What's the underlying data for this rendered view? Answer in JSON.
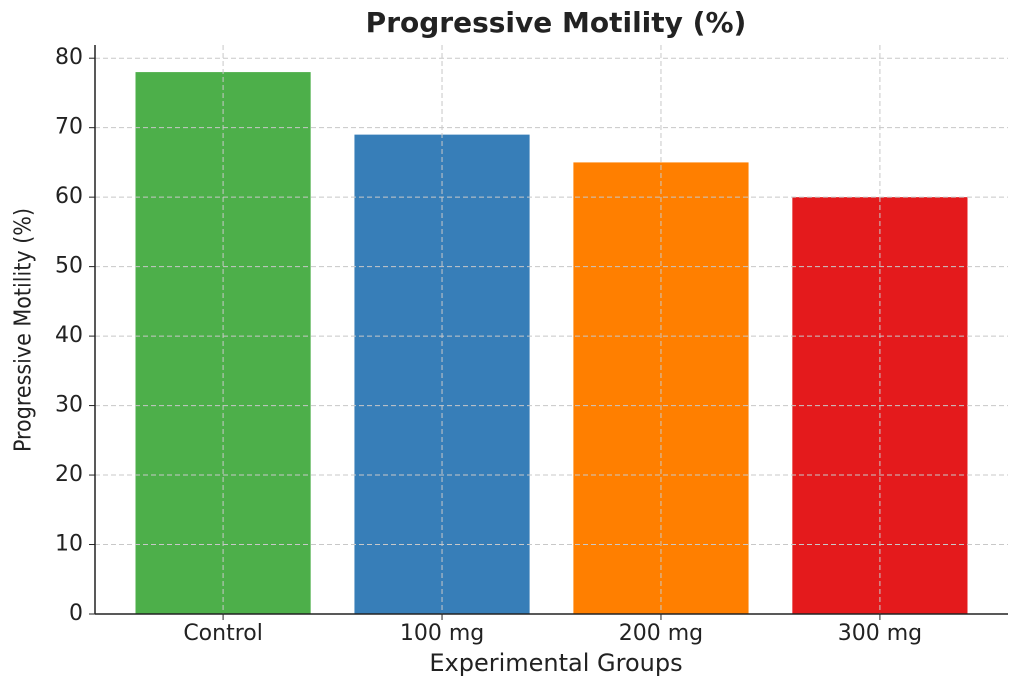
{
  "chart_data": {
    "type": "bar",
    "title": "Progressive Motility (%)",
    "xlabel": "Experimental Groups",
    "ylabel": "Progressive Motility (%)",
    "categories": [
      "Control",
      "100 mg",
      "200 mg",
      "300 mg"
    ],
    "values": [
      78,
      69,
      65,
      60
    ],
    "colors": [
      "#4daf4a",
      "#377eb8",
      "#ff7f00",
      "#e41a1c"
    ],
    "ylim": [
      0,
      81.9
    ],
    "yticks": [
      0,
      10,
      20,
      30,
      40,
      50,
      60,
      70,
      80
    ],
    "grid": true
  }
}
